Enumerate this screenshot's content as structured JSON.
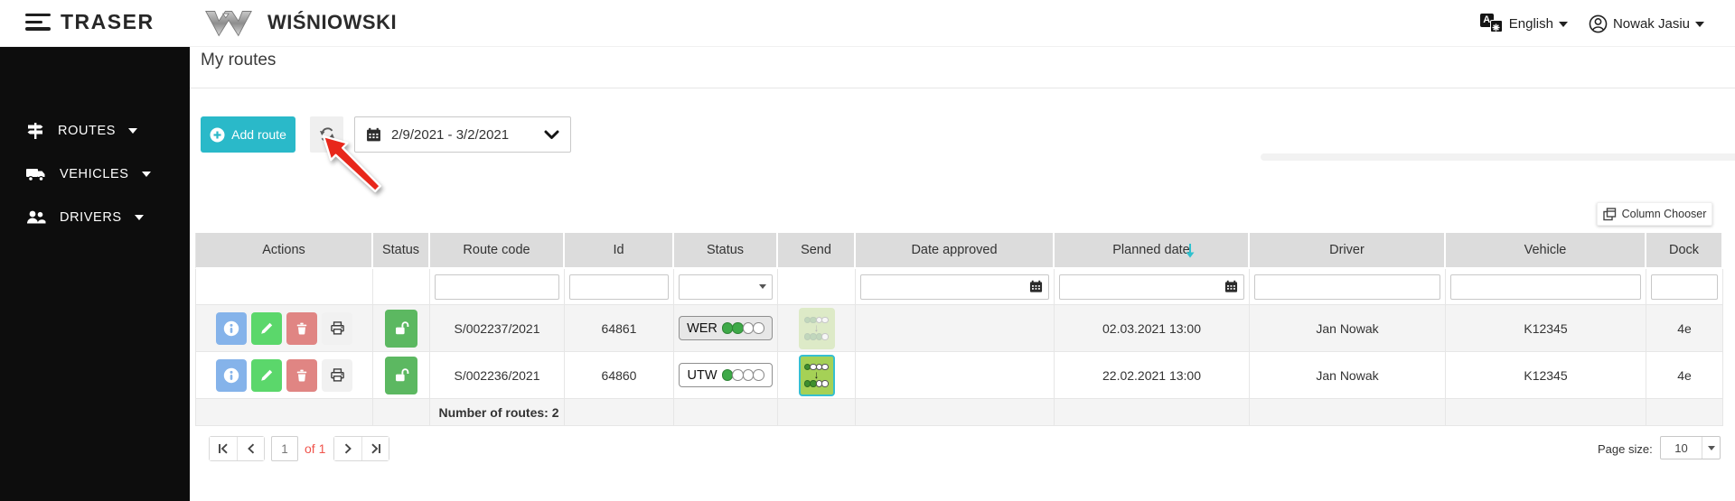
{
  "topbar": {
    "app_name": "TRASER",
    "brand_name": "WIŚNIOWSKI",
    "language_label": "English",
    "user_name": "Nowak Jasiu"
  },
  "sidebar": {
    "items": [
      {
        "label": "ROUTES",
        "icon": "signpost-icon"
      },
      {
        "label": "VEHICLES",
        "icon": "truck-icon"
      },
      {
        "label": "DRIVERS",
        "icon": "people-icon"
      }
    ]
  },
  "page": {
    "title": "My routes",
    "add_route_label": "Add route",
    "date_range": "2/9/2021 - 3/2/2021",
    "column_chooser_label": "Column Chooser"
  },
  "table": {
    "columns": [
      "Actions",
      "Status",
      "Route code",
      "Id",
      "Status",
      "Send",
      "Date approved",
      "Planned date",
      "Driver",
      "Vehicle",
      "Dock"
    ],
    "sort": {
      "column": "Planned date",
      "direction": "desc"
    },
    "rows": [
      {
        "route_code": "S/002237/2021",
        "id": "64861",
        "status_code": "WER",
        "status_dots": [
          1,
          1,
          0,
          0
        ],
        "send_top": [
          1,
          1,
          0,
          0
        ],
        "send_bottom": [
          1,
          1,
          1,
          0
        ],
        "send_enabled": false,
        "date_approved": "",
        "planned_date": "02.03.2021 13:00",
        "driver": "Jan Nowak",
        "vehicle": "K12345",
        "dock": "4e"
      },
      {
        "route_code": "S/002236/2021",
        "id": "64860",
        "status_code": "UTW",
        "status_dots": [
          1,
          0,
          0,
          0
        ],
        "send_top": [
          1,
          0,
          0,
          0
        ],
        "send_bottom": [
          1,
          1,
          0,
          0
        ],
        "send_enabled": true,
        "date_approved": "",
        "planned_date": "22.02.2021 13:00",
        "driver": "Jan Nowak",
        "vehicle": "K12345",
        "dock": "4e"
      }
    ],
    "footer_summary": "Number of routes: 2"
  },
  "pagination": {
    "current_page": "1",
    "of_label": "of 1",
    "page_size_label": "Page size:",
    "page_size_value": "10"
  },
  "colors": {
    "accent_teal": "#2ab9c9",
    "header_bg": "#dcdcdc",
    "row_alt": "#f4f4f4",
    "info_blue": "#85b3ea",
    "edit_green": "#5bd76b",
    "delete_red": "#e08583",
    "unlock_green": "#5cb861",
    "dot_green": "#3ea948",
    "send_bg": "#a5d156",
    "send_border": "#35bfd1",
    "arrow_red": "#e8271b",
    "pager_red": "#f0544c",
    "sort_teal": "#2fc1ce"
  }
}
